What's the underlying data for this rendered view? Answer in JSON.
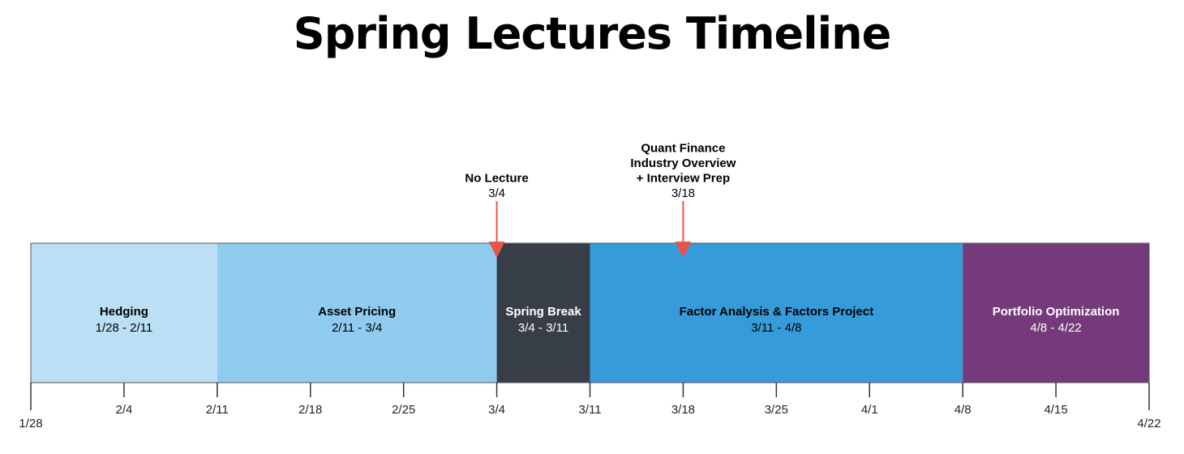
{
  "title": "Spring Lectures Timeline",
  "axis": {
    "start": "1/28",
    "end": "4/22",
    "ticks": [
      {
        "label": "1/28",
        "day": 0
      },
      {
        "label": "2/4",
        "day": 7
      },
      {
        "label": "2/11",
        "day": 14
      },
      {
        "label": "2/18",
        "day": 21
      },
      {
        "label": "2/25",
        "day": 28
      },
      {
        "label": "3/4",
        "day": 35
      },
      {
        "label": "3/11",
        "day": 42
      },
      {
        "label": "3/18",
        "day": 49
      },
      {
        "label": "3/25",
        "day": 56
      },
      {
        "label": "4/1",
        "day": 63
      },
      {
        "label": "4/8",
        "day": 70
      },
      {
        "label": "4/15",
        "day": 77
      },
      {
        "label": "4/22",
        "day": 84
      }
    ]
  },
  "segments": [
    {
      "title": "Hedging",
      "dates": "1/28 - 2/11",
      "start_day": 0,
      "end_day": 14,
      "color": "#bbdff5",
      "text_color": "#000000"
    },
    {
      "title": "Asset Pricing",
      "dates": "2/11 - 3/4",
      "start_day": 14,
      "end_day": 35,
      "color": "#8ecbef",
      "text_color": "#000000"
    },
    {
      "title": "Spring Break",
      "dates": "3/4 - 3/11",
      "start_day": 35,
      "end_day": 42,
      "color": "#383e48",
      "text_color": "#ffffff"
    },
    {
      "title": "Factor Analysis & Factors Project",
      "dates": "3/11 - 4/8",
      "start_day": 42,
      "end_day": 70,
      "color": "#369bd9",
      "text_color": "#000000"
    },
    {
      "title": "Portfolio Optimization",
      "dates": "4/8 - 4/22",
      "start_day": 70,
      "end_day": 84,
      "color": "#753a7b",
      "text_color": "#ffffff"
    }
  ],
  "markers": [
    {
      "lines": [
        "No Lecture"
      ],
      "date": "3/4",
      "day": 35
    },
    {
      "lines": [
        "Quant Finance",
        "Industry Overview",
        "+ Interview Prep"
      ],
      "date": "3/18",
      "day": 49
    }
  ],
  "colors": {
    "marker_arrow": "#e8544a",
    "axis_line": "#333333"
  }
}
